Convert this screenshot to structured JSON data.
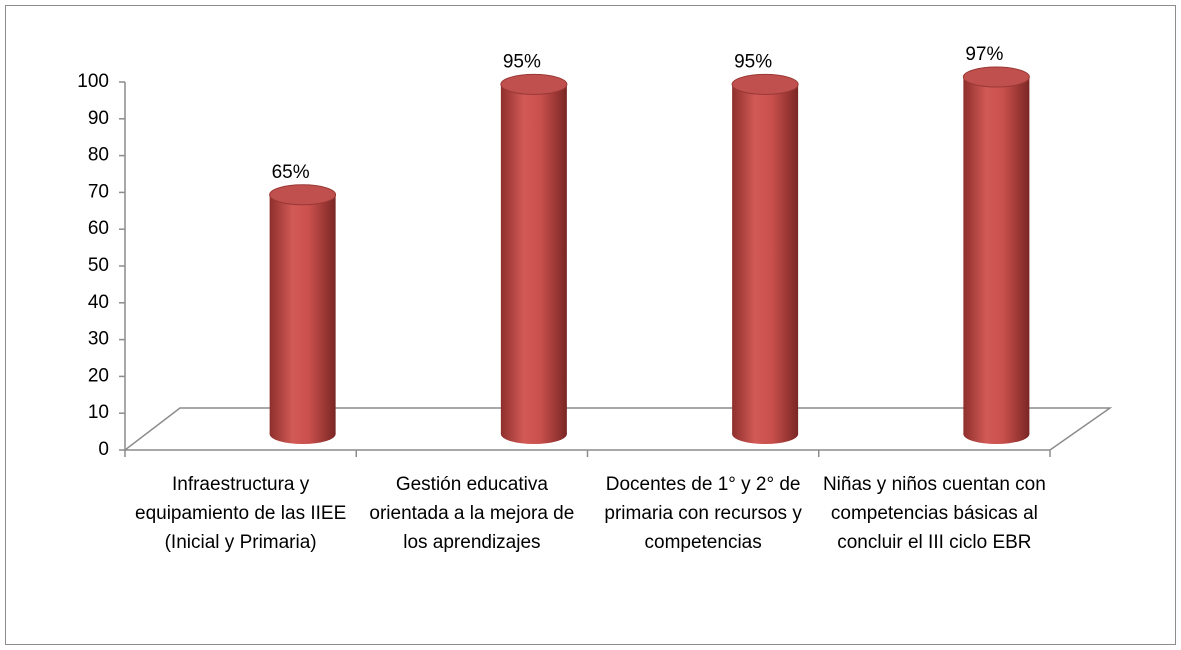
{
  "chart_data": {
    "type": "bar",
    "categories": [
      "Infraestructura y equipamiento de las IIEE (Inicial y Primaria)",
      "Gestión educativa orientada a la mejora de los aprendizajes",
      "Docentes de 1° y 2° de primaria con recursos y competencias",
      "Niñas y niños cuentan con competencias básicas al concluir el III ciclo EBR"
    ],
    "values": [
      65,
      95,
      95,
      97
    ],
    "value_labels": [
      "65%",
      "95%",
      "95%",
      "97%"
    ],
    "color": "#c0504d",
    "ylim": [
      0,
      100
    ],
    "yticks": [
      0,
      10,
      20,
      30,
      40,
      50,
      60,
      70,
      80,
      90,
      100
    ],
    "grid": false
  }
}
